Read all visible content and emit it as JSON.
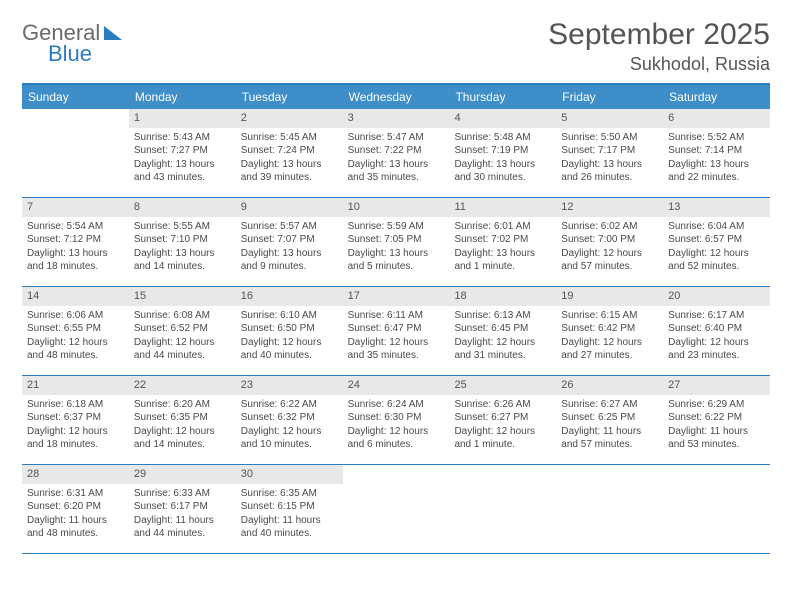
{
  "logo": {
    "text1": "General",
    "text2": "Blue"
  },
  "title": "September 2025",
  "location": "Sukhodol, Russia",
  "colors": {
    "header_bg": "#3d8ec9",
    "border": "#2b7cc0",
    "daynum_bg": "#e8e8e8",
    "text": "#4a4a4a"
  },
  "weekdays": [
    "Sunday",
    "Monday",
    "Tuesday",
    "Wednesday",
    "Thursday",
    "Friday",
    "Saturday"
  ],
  "weeks": [
    [
      null,
      {
        "n": "1",
        "sr": "Sunrise: 5:43 AM",
        "ss": "Sunset: 7:27 PM",
        "d1": "Daylight: 13 hours",
        "d2": "and 43 minutes."
      },
      {
        "n": "2",
        "sr": "Sunrise: 5:45 AM",
        "ss": "Sunset: 7:24 PM",
        "d1": "Daylight: 13 hours",
        "d2": "and 39 minutes."
      },
      {
        "n": "3",
        "sr": "Sunrise: 5:47 AM",
        "ss": "Sunset: 7:22 PM",
        "d1": "Daylight: 13 hours",
        "d2": "and 35 minutes."
      },
      {
        "n": "4",
        "sr": "Sunrise: 5:48 AM",
        "ss": "Sunset: 7:19 PM",
        "d1": "Daylight: 13 hours",
        "d2": "and 30 minutes."
      },
      {
        "n": "5",
        "sr": "Sunrise: 5:50 AM",
        "ss": "Sunset: 7:17 PM",
        "d1": "Daylight: 13 hours",
        "d2": "and 26 minutes."
      },
      {
        "n": "6",
        "sr": "Sunrise: 5:52 AM",
        "ss": "Sunset: 7:14 PM",
        "d1": "Daylight: 13 hours",
        "d2": "and 22 minutes."
      }
    ],
    [
      {
        "n": "7",
        "sr": "Sunrise: 5:54 AM",
        "ss": "Sunset: 7:12 PM",
        "d1": "Daylight: 13 hours",
        "d2": "and 18 minutes."
      },
      {
        "n": "8",
        "sr": "Sunrise: 5:55 AM",
        "ss": "Sunset: 7:10 PM",
        "d1": "Daylight: 13 hours",
        "d2": "and 14 minutes."
      },
      {
        "n": "9",
        "sr": "Sunrise: 5:57 AM",
        "ss": "Sunset: 7:07 PM",
        "d1": "Daylight: 13 hours",
        "d2": "and 9 minutes."
      },
      {
        "n": "10",
        "sr": "Sunrise: 5:59 AM",
        "ss": "Sunset: 7:05 PM",
        "d1": "Daylight: 13 hours",
        "d2": "and 5 minutes."
      },
      {
        "n": "11",
        "sr": "Sunrise: 6:01 AM",
        "ss": "Sunset: 7:02 PM",
        "d1": "Daylight: 13 hours",
        "d2": "and 1 minute."
      },
      {
        "n": "12",
        "sr": "Sunrise: 6:02 AM",
        "ss": "Sunset: 7:00 PM",
        "d1": "Daylight: 12 hours",
        "d2": "and 57 minutes."
      },
      {
        "n": "13",
        "sr": "Sunrise: 6:04 AM",
        "ss": "Sunset: 6:57 PM",
        "d1": "Daylight: 12 hours",
        "d2": "and 52 minutes."
      }
    ],
    [
      {
        "n": "14",
        "sr": "Sunrise: 6:06 AM",
        "ss": "Sunset: 6:55 PM",
        "d1": "Daylight: 12 hours",
        "d2": "and 48 minutes."
      },
      {
        "n": "15",
        "sr": "Sunrise: 6:08 AM",
        "ss": "Sunset: 6:52 PM",
        "d1": "Daylight: 12 hours",
        "d2": "and 44 minutes."
      },
      {
        "n": "16",
        "sr": "Sunrise: 6:10 AM",
        "ss": "Sunset: 6:50 PM",
        "d1": "Daylight: 12 hours",
        "d2": "and 40 minutes."
      },
      {
        "n": "17",
        "sr": "Sunrise: 6:11 AM",
        "ss": "Sunset: 6:47 PM",
        "d1": "Daylight: 12 hours",
        "d2": "and 35 minutes."
      },
      {
        "n": "18",
        "sr": "Sunrise: 6:13 AM",
        "ss": "Sunset: 6:45 PM",
        "d1": "Daylight: 12 hours",
        "d2": "and 31 minutes."
      },
      {
        "n": "19",
        "sr": "Sunrise: 6:15 AM",
        "ss": "Sunset: 6:42 PM",
        "d1": "Daylight: 12 hours",
        "d2": "and 27 minutes."
      },
      {
        "n": "20",
        "sr": "Sunrise: 6:17 AM",
        "ss": "Sunset: 6:40 PM",
        "d1": "Daylight: 12 hours",
        "d2": "and 23 minutes."
      }
    ],
    [
      {
        "n": "21",
        "sr": "Sunrise: 6:18 AM",
        "ss": "Sunset: 6:37 PM",
        "d1": "Daylight: 12 hours",
        "d2": "and 18 minutes."
      },
      {
        "n": "22",
        "sr": "Sunrise: 6:20 AM",
        "ss": "Sunset: 6:35 PM",
        "d1": "Daylight: 12 hours",
        "d2": "and 14 minutes."
      },
      {
        "n": "23",
        "sr": "Sunrise: 6:22 AM",
        "ss": "Sunset: 6:32 PM",
        "d1": "Daylight: 12 hours",
        "d2": "and 10 minutes."
      },
      {
        "n": "24",
        "sr": "Sunrise: 6:24 AM",
        "ss": "Sunset: 6:30 PM",
        "d1": "Daylight: 12 hours",
        "d2": "and 6 minutes."
      },
      {
        "n": "25",
        "sr": "Sunrise: 6:26 AM",
        "ss": "Sunset: 6:27 PM",
        "d1": "Daylight: 12 hours",
        "d2": "and 1 minute."
      },
      {
        "n": "26",
        "sr": "Sunrise: 6:27 AM",
        "ss": "Sunset: 6:25 PM",
        "d1": "Daylight: 11 hours",
        "d2": "and 57 minutes."
      },
      {
        "n": "27",
        "sr": "Sunrise: 6:29 AM",
        "ss": "Sunset: 6:22 PM",
        "d1": "Daylight: 11 hours",
        "d2": "and 53 minutes."
      }
    ],
    [
      {
        "n": "28",
        "sr": "Sunrise: 6:31 AM",
        "ss": "Sunset: 6:20 PM",
        "d1": "Daylight: 11 hours",
        "d2": "and 48 minutes."
      },
      {
        "n": "29",
        "sr": "Sunrise: 6:33 AM",
        "ss": "Sunset: 6:17 PM",
        "d1": "Daylight: 11 hours",
        "d2": "and 44 minutes."
      },
      {
        "n": "30",
        "sr": "Sunrise: 6:35 AM",
        "ss": "Sunset: 6:15 PM",
        "d1": "Daylight: 11 hours",
        "d2": "and 40 minutes."
      },
      null,
      null,
      null,
      null
    ]
  ]
}
